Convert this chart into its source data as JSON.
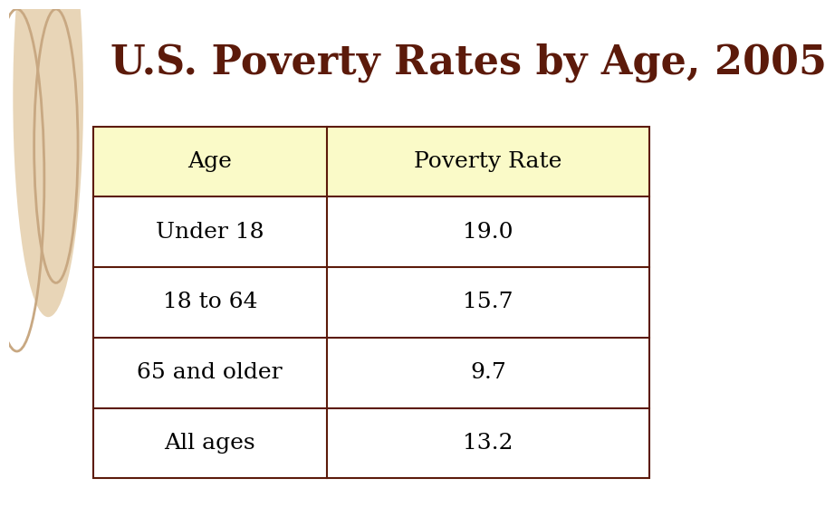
{
  "title": "U.S. Poverty Rates by Age, 2005",
  "title_color": "#5C1A0A",
  "title_fontsize": 32,
  "title_fontstyle": "bold",
  "columns": [
    "Age",
    "Poverty Rate"
  ],
  "rows": [
    [
      "Under 18",
      "19.0"
    ],
    [
      "18 to 64",
      "15.7"
    ],
    [
      "65 and older",
      "9.7"
    ],
    [
      "All ages",
      "13.2"
    ]
  ],
  "header_bg": "#FAFAC8",
  "row_bg": "#FFFFFF",
  "border_color": "#5C1A0A",
  "text_color": "#000000",
  "background_left": "#D4B896",
  "background_right": "#FFFFFF",
  "cell_fontsize": 18,
  "header_fontsize": 18,
  "circle1_color": "#E8D5B7",
  "circle2_color": "#C8A882",
  "circle3_color": "#C8A882"
}
